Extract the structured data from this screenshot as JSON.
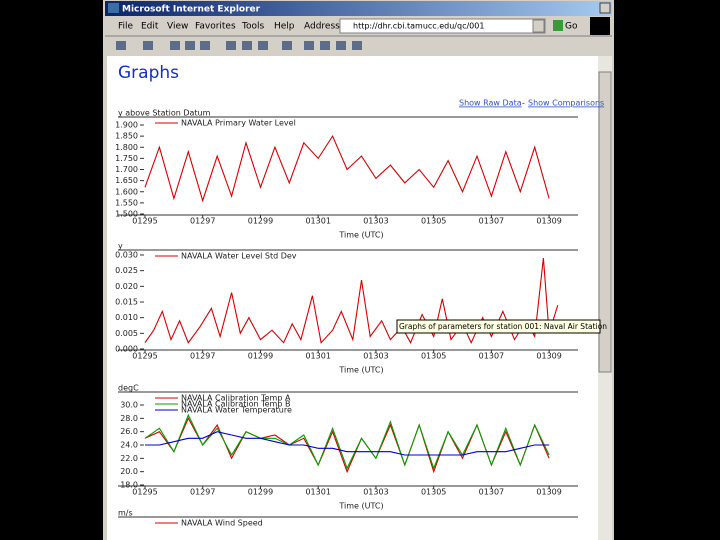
{
  "window": {
    "title": "Microsoft Internet Explorer"
  },
  "menu": [
    "File",
    "Edit",
    "View",
    "Favorites",
    "Tools",
    "Help"
  ],
  "address": {
    "label": "Address",
    "url": "http://dhr.cbi.tamucc.edu/qc/001",
    "go": "Go"
  },
  "page": {
    "heading": "Graphs",
    "links": [
      "Show Raw Data",
      "-",
      "Show Comparisons"
    ],
    "tooltip": "Graphs of parameters for station 001: Naval Air Station"
  },
  "chart_data": [
    {
      "type": "line",
      "ylabel": "y above Station Datum",
      "xlabel": "Time (UTC)",
      "x": [
        295,
        295.5,
        296,
        296.5,
        297,
        297.5,
        298,
        298.5,
        299,
        299.5,
        300,
        300.5,
        301,
        301.5,
        302,
        302.5,
        303,
        303.5,
        304,
        304.5,
        305,
        305.5,
        306,
        306.5,
        307,
        307.5,
        308,
        308.5,
        309
      ],
      "series": [
        {
          "name": "NAVALA Primary Water Level",
          "color": "#d40000",
          "values": [
            1.62,
            1.8,
            1.57,
            1.78,
            1.56,
            1.76,
            1.58,
            1.82,
            1.62,
            1.8,
            1.64,
            1.82,
            1.75,
            1.85,
            1.7,
            1.76,
            1.66,
            1.72,
            1.64,
            1.7,
            1.62,
            1.74,
            1.6,
            1.76,
            1.58,
            1.78,
            1.6,
            1.8,
            1.57
          ]
        }
      ],
      "xlim": [
        295,
        310
      ],
      "xticks": [
        {
          "value": 295,
          "label": "01295"
        },
        {
          "value": 297,
          "label": "01297"
        },
        {
          "value": 299,
          "label": "01299"
        },
        {
          "value": 301,
          "label": "01301"
        },
        {
          "value": 303,
          "label": "01303"
        },
        {
          "value": 305,
          "label": "01305"
        },
        {
          "value": 307,
          "label": "01307"
        },
        {
          "value": 309,
          "label": "01309"
        }
      ],
      "ylim": [
        1.5,
        1.9
      ],
      "yticks": [
        {
          "value": 1.5,
          "label": "1.500"
        },
        {
          "value": 1.55,
          "label": "1.550"
        },
        {
          "value": 1.6,
          "label": "1.600"
        },
        {
          "value": 1.65,
          "label": "1.650"
        },
        {
          "value": 1.7,
          "label": "1.700"
        },
        {
          "value": 1.75,
          "label": "1.750"
        },
        {
          "value": 1.8,
          "label": "1.800"
        },
        {
          "value": 1.85,
          "label": "1.850"
        },
        {
          "value": 1.9,
          "label": "1.900"
        }
      ]
    },
    {
      "type": "line",
      "ylabel": "y",
      "xlabel": "Time (UTC)",
      "x": [
        295.0,
        295.3,
        295.6,
        295.9,
        296.2,
        296.5,
        296.9,
        297.3,
        297.6,
        298.0,
        298.3,
        298.6,
        299.0,
        299.4,
        299.8,
        300.1,
        300.4,
        300.8,
        301.1,
        301.5,
        301.8,
        302.2,
        302.5,
        302.8,
        303.2,
        303.5,
        303.9,
        304.2,
        304.6,
        305.0,
        305.3,
        305.6,
        306.0,
        306.3,
        306.7,
        307.0,
        307.4,
        307.8,
        308.2,
        308.5,
        308.8,
        309.0,
        309.3
      ],
      "series": [
        {
          "name": "NAVALA Water Level Std Dev",
          "color": "#d40000",
          "values": [
            0.002,
            0.006,
            0.012,
            0.003,
            0.009,
            0.002,
            0.007,
            0.013,
            0.004,
            0.018,
            0.005,
            0.01,
            0.003,
            0.006,
            0.002,
            0.008,
            0.003,
            0.017,
            0.002,
            0.006,
            0.012,
            0.003,
            0.022,
            0.004,
            0.009,
            0.003,
            0.007,
            0.002,
            0.011,
            0.004,
            0.016,
            0.003,
            0.008,
            0.002,
            0.01,
            0.004,
            0.012,
            0.003,
            0.009,
            0.004,
            0.029,
            0.005,
            0.014
          ]
        }
      ],
      "xlim": [
        295,
        310
      ],
      "xticks": [
        {
          "value": 295,
          "label": "01295"
        },
        {
          "value": 297,
          "label": "01297"
        },
        {
          "value": 299,
          "label": "01299"
        },
        {
          "value": 301,
          "label": "01301"
        },
        {
          "value": 303,
          "label": "01303"
        },
        {
          "value": 305,
          "label": "01305"
        },
        {
          "value": 307,
          "label": "01307"
        },
        {
          "value": 309,
          "label": "01309"
        }
      ],
      "ylim": [
        0,
        0.03
      ],
      "yticks": [
        {
          "value": 0,
          "label": "0.000"
        },
        {
          "value": 0.005,
          "label": "0.005"
        },
        {
          "value": 0.01,
          "label": "0.010"
        },
        {
          "value": 0.015,
          "label": "0.015"
        },
        {
          "value": 0.02,
          "label": "0.020"
        },
        {
          "value": 0.025,
          "label": "0.025"
        },
        {
          "value": 0.03,
          "label": "0.030"
        }
      ]
    },
    {
      "type": "line",
      "ylabel": "degC",
      "xlabel": "Time (UTC)",
      "x": [
        295,
        295.5,
        296,
        296.5,
        297,
        297.5,
        298,
        298.5,
        299,
        299.5,
        300,
        300.5,
        301,
        301.5,
        302,
        302.5,
        303,
        303.5,
        304,
        304.5,
        305,
        305.5,
        306,
        306.5,
        307,
        307.5,
        308,
        308.5,
        309
      ],
      "series": [
        {
          "name": "NAVALA Calibration Temp A",
          "color": "#d40000",
          "values": [
            25,
            26,
            23,
            28,
            24,
            27,
            22,
            26,
            25,
            25.5,
            24,
            25,
            21,
            26,
            20,
            25,
            22,
            27,
            21,
            27,
            20,
            26,
            22,
            27,
            21,
            26,
            21,
            27,
            22
          ]
        },
        {
          "name": "NAVALA Calibration Temp B",
          "color": "#00a000",
          "values": [
            25,
            26.5,
            23,
            28.5,
            24,
            26.5,
            22.5,
            26,
            25,
            25,
            24,
            25.5,
            21,
            26.5,
            20.5,
            25,
            22,
            27.5,
            21,
            27,
            20.5,
            26,
            22.5,
            27,
            21,
            26.5,
            21,
            27,
            22.5
          ]
        },
        {
          "name": "NAVALA Water Temperature",
          "color": "#0000c0",
          "values": [
            24,
            24,
            24.5,
            25,
            25,
            26,
            25.5,
            25,
            25,
            24.5,
            24,
            24,
            23.5,
            23.5,
            23,
            23,
            23,
            23,
            22.5,
            22.5,
            22.5,
            22.5,
            22.5,
            23,
            23,
            23,
            23.5,
            24,
            24
          ]
        }
      ],
      "xlim": [
        295,
        310
      ],
      "xticks": [
        {
          "value": 295,
          "label": "01295"
        },
        {
          "value": 297,
          "label": "01297"
        },
        {
          "value": 299,
          "label": "01299"
        },
        {
          "value": 301,
          "label": "01301"
        },
        {
          "value": 303,
          "label": "01303"
        },
        {
          "value": 305,
          "label": "01305"
        },
        {
          "value": 307,
          "label": "01307"
        },
        {
          "value": 309,
          "label": "01309"
        }
      ],
      "ylim": [
        18,
        30
      ],
      "yticks": [
        {
          "value": 18,
          "label": "18.0"
        },
        {
          "value": 20,
          "label": "20.0"
        },
        {
          "value": 22,
          "label": "22.0"
        },
        {
          "value": 24,
          "label": "24.0"
        },
        {
          "value": 26,
          "label": "26.0"
        },
        {
          "value": 28,
          "label": "28.0"
        },
        {
          "value": 30,
          "label": "30.0"
        }
      ]
    },
    {
      "type": "line",
      "ylabel": "m/s",
      "series": [
        {
          "name": "NAVALA Wind Speed",
          "color": "#d40000"
        }
      ]
    }
  ]
}
